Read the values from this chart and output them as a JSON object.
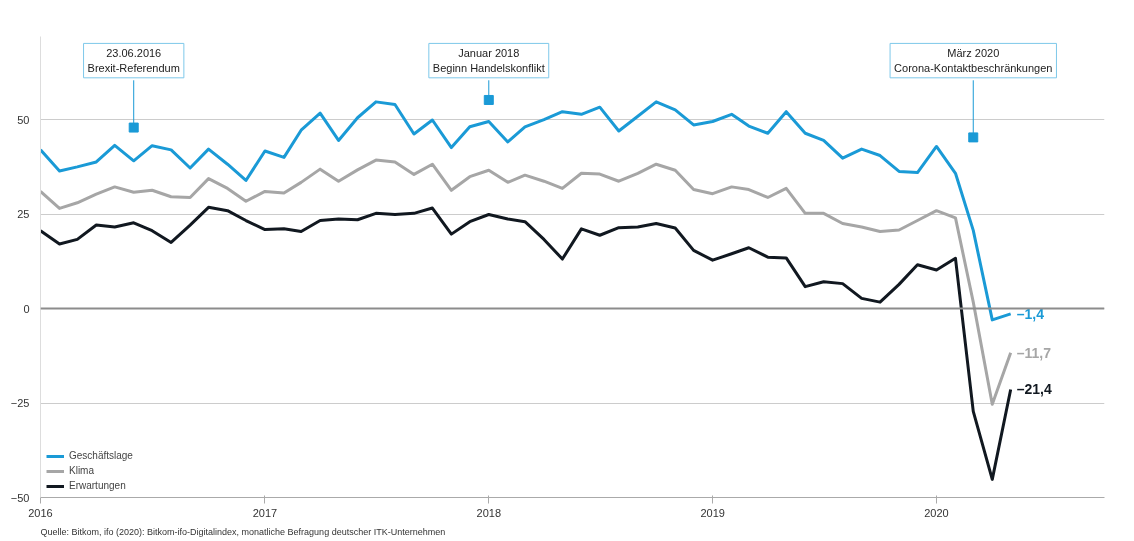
{
  "chart_data": {
    "type": "line",
    "x": [
      "2016-01",
      "2016-02",
      "2016-03",
      "2016-04",
      "2016-05",
      "2016-06",
      "2016-07",
      "2016-08",
      "2016-09",
      "2016-10",
      "2016-11",
      "2016-12",
      "2017-01",
      "2017-02",
      "2017-03",
      "2017-04",
      "2017-05",
      "2017-06",
      "2017-07",
      "2017-08",
      "2017-09",
      "2017-10",
      "2017-11",
      "2017-12",
      "2018-01",
      "2018-02",
      "2018-03",
      "2018-04",
      "2018-05",
      "2018-06",
      "2018-07",
      "2018-08",
      "2018-09",
      "2018-10",
      "2018-11",
      "2018-12",
      "2019-01",
      "2019-02",
      "2019-03",
      "2019-04",
      "2019-05",
      "2019-06",
      "2019-07",
      "2019-08",
      "2019-09",
      "2019-10",
      "2019-11",
      "2019-12",
      "2020-01",
      "2020-02",
      "2020-03",
      "2020-04",
      "2020-05"
    ],
    "series": [
      {
        "name": "Geschäftslage",
        "color": "#1a9ad6",
        "values": [
          42,
          36.4,
          37.5,
          38.8,
          43.2,
          39.1,
          43.1,
          42,
          37.2,
          42.2,
          38.2,
          33.9,
          41.7,
          40,
          47.2,
          51.7,
          44.5,
          50.5,
          54.7,
          54,
          46.2,
          49.9,
          42.6,
          48.1,
          49.5,
          44.1,
          48.1,
          50,
          52.1,
          51.4,
          53.3,
          47,
          50.9,
          54.7,
          52.6,
          48.6,
          49.5,
          51.4,
          48.3,
          46.4,
          52.1,
          46.4,
          44.5,
          39.8,
          42.2,
          40.5,
          36.3,
          36,
          42.9,
          35.8,
          20.7,
          -3,
          -1.4
        ],
        "value_labels": [
          null,
          null,
          null,
          null,
          null,
          null,
          null,
          null,
          null,
          null,
          null,
          null,
          null,
          null,
          null,
          null,
          null,
          null,
          null,
          null,
          null,
          null,
          null,
          null,
          null,
          null,
          null,
          null,
          null,
          null,
          null,
          null,
          null,
          null,
          null,
          null,
          null,
          null,
          null,
          null,
          null,
          null,
          null,
          null,
          null,
          null,
          null,
          null,
          null,
          null,
          null,
          null,
          "–1,4"
        ]
      },
      {
        "name": "Klima",
        "color": "#a6a6a6",
        "values": [
          31,
          26.5,
          28,
          30.3,
          32.2,
          30.8,
          31.3,
          29.6,
          29.4,
          34.4,
          31.8,
          28.4,
          31,
          30.6,
          33.4,
          36.9,
          33.7,
          36.7,
          39.3,
          38.8,
          35.5,
          38.2,
          31.3,
          34.9,
          36.6,
          33.4,
          35.3,
          33.7,
          31.8,
          35.8,
          35.6,
          33.7,
          35.8,
          38.2,
          36.6,
          31.5,
          30.4,
          32.2,
          31.5,
          29.4,
          31.8,
          25.2,
          25.2,
          22.5,
          21.6,
          20.4,
          20.8,
          23.3,
          25.9,
          24,
          1.7,
          -25.3,
          -11.7
        ],
        "value_labels": [
          null,
          null,
          null,
          null,
          null,
          null,
          null,
          null,
          null,
          null,
          null,
          null,
          null,
          null,
          null,
          null,
          null,
          null,
          null,
          null,
          null,
          null,
          null,
          null,
          null,
          null,
          null,
          null,
          null,
          null,
          null,
          null,
          null,
          null,
          null,
          null,
          null,
          null,
          null,
          null,
          null,
          null,
          null,
          null,
          null,
          null,
          null,
          null,
          null,
          null,
          null,
          null,
          "–11,7"
        ]
      },
      {
        "name": "Erwartungen",
        "color": "#111820",
        "values": [
          20.6,
          17.1,
          18.3,
          22.1,
          21.6,
          22.7,
          20.6,
          17.5,
          22.1,
          26.8,
          25.9,
          23.3,
          20.9,
          21.1,
          20.4,
          23.3,
          23.7,
          23.5,
          25.2,
          24.9,
          25.2,
          26.6,
          19.7,
          23,
          24.9,
          23.7,
          23,
          18.3,
          13.1,
          21.1,
          19.4,
          21.4,
          21.6,
          22.5,
          21.3,
          15.4,
          12.8,
          14.5,
          16.1,
          13.6,
          13.4,
          5.8,
          7.1,
          6.6,
          2.7,
          1.7,
          6.4,
          11.6,
          10.2,
          13.3,
          -27.2,
          -45.2,
          -21.4
        ],
        "value_labels": [
          null,
          null,
          null,
          null,
          null,
          null,
          null,
          null,
          null,
          null,
          null,
          null,
          null,
          null,
          null,
          null,
          null,
          null,
          null,
          null,
          null,
          null,
          null,
          null,
          null,
          null,
          null,
          null,
          null,
          null,
          null,
          null,
          null,
          null,
          null,
          null,
          null,
          null,
          null,
          null,
          null,
          null,
          null,
          null,
          null,
          null,
          null,
          null,
          null,
          null,
          null,
          null,
          "–21,4"
        ]
      }
    ],
    "xlim": [
      "2016-01",
      "2020-10"
    ],
    "xticks": [
      {
        "value": "2016-01",
        "label": "2016"
      },
      {
        "value": "2017-01",
        "label": "2017"
      },
      {
        "value": "2018-01",
        "label": "2018"
      },
      {
        "value": "2019-01",
        "label": "2019"
      },
      {
        "value": "2020-01",
        "label": "2020"
      }
    ],
    "ylim": [
      -50,
      72
    ],
    "yticks": [
      -50,
      -25,
      0,
      25,
      50
    ],
    "grid": "y",
    "ref_lines": [
      {
        "axis": "y",
        "value": 0,
        "color": "#8c8c8c"
      }
    ],
    "legend": "bottom left",
    "line_style": "solid",
    "annotations": [
      {
        "text": "23.06.2016\nBrexit-Referendum",
        "x": "2016-06",
        "y": 47.9
      },
      {
        "text": "Januar 2018\nBeginn Handelskonflikt",
        "x": "2018-01",
        "y": 55.2
      },
      {
        "text": "März 2020\nCorona-Kontaktbeschränkungen",
        "x": "2020-03",
        "y": 45.3
      },
      "Quelle: Bitkom, ifo (2020): Bitkom-ifo-Digitalindex, monatliche Befragung deutscher ITK-Unternehmen"
    ]
  }
}
